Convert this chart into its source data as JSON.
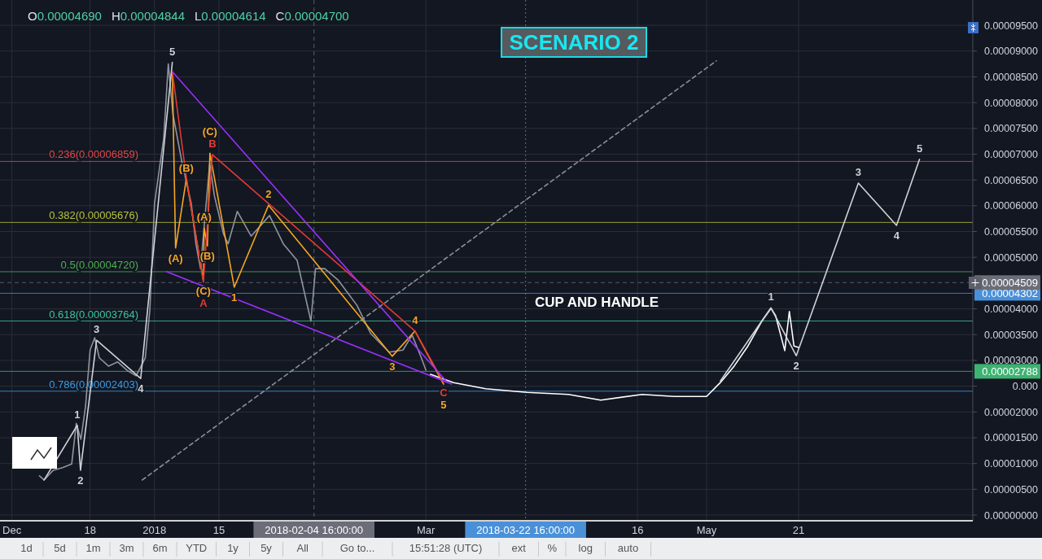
{
  "chart_data": {
    "type": "line",
    "title": "SCENARIO 2",
    "subtitle": "O0.00004690 H0.00004844 L0.00004614 C0.00004700",
    "xlim": [
      "2017-11-28T10:00",
      "2018-06-27T21:00"
    ],
    "xticks": [
      {
        "value": "2017-12-01",
        "label": "Dec"
      },
      {
        "value": "2017-12-18",
        "label": "18"
      },
      {
        "value": "2018-01-01",
        "label": "2018"
      },
      {
        "value": "2018-01-15",
        "label": "15"
      },
      {
        "value": "2018-03-01",
        "label": "Mar"
      },
      {
        "value": "2018-04-16",
        "label": "16"
      },
      {
        "value": "2018-05-01",
        "label": "May"
      },
      {
        "value": "2018-05-21",
        "label": "21"
      }
    ],
    "ylim": [
      -1.1e-06,
      9.99e-05
    ],
    "yticks": [
      {
        "value": 0,
        "label": "0.00000000"
      },
      {
        "value": 5e-06,
        "label": "0.00000500"
      },
      {
        "value": 1e-05,
        "label": "0.00001000"
      },
      {
        "value": 1.5e-05,
        "label": "0.00001500"
      },
      {
        "value": 2e-05,
        "label": "0.00002000"
      },
      {
        "value": 2.5e-05,
        "label": "0.000"
      },
      {
        "value": 3e-05,
        "label": "0.00003000"
      },
      {
        "value": 3.5e-05,
        "label": "0.00003500"
      },
      {
        "value": 4e-05,
        "label": "0.00004000"
      },
      {
        "value": 5e-05,
        "label": "0.00005000"
      },
      {
        "value": 5.5e-05,
        "label": "0.00005500"
      },
      {
        "value": 6e-05,
        "label": "0.00006000"
      },
      {
        "value": 6.5e-05,
        "label": "0.00006500"
      },
      {
        "value": 7e-05,
        "label": "0.00007000"
      },
      {
        "value": 7.5e-05,
        "label": "0.00007500"
      },
      {
        "value": 8e-05,
        "label": "0.00008000"
      },
      {
        "value": 8.5e-05,
        "label": "0.00008500"
      },
      {
        "value": 9e-05,
        "label": "0.00009000"
      },
      {
        "value": 9.5e-05,
        "label": "0.00009500"
      }
    ],
    "grid": true,
    "series": [
      {
        "color": "#8f949e",
        "x": [
          "2017-12-07",
          "2017-12-08",
          "2017-12-10",
          "2017-12-12",
          "2017-12-14",
          "2017-12-15",
          "2017-12-16",
          "2017-12-17",
          "2017-12-18",
          "2017-12-19",
          "2017-12-20",
          "2017-12-22",
          "2017-12-24",
          "2017-12-26",
          "2017-12-28",
          "2017-12-30",
          "2017-12-31",
          "2018-01-01",
          "2018-01-03",
          "2018-01-04",
          "2018-01-05",
          "2018-01-07",
          "2018-01-09",
          "2018-01-10",
          "2018-01-11",
          "2018-01-13",
          "2018-01-14",
          "2018-01-16",
          "2018-01-17",
          "2018-01-19",
          "2018-01-22",
          "2018-01-26",
          "2018-01-29",
          "2018-02-01",
          "2018-02-04",
          "2018-02-05",
          "2018-02-07",
          "2018-02-10",
          "2018-02-14",
          "2018-02-17",
          "2018-02-21",
          "2018-02-24",
          "2018-02-26",
          "2018-02-28",
          "2018-03-01"
        ],
        "values": [
          7.6e-06,
          6.8e-06,
          8.7e-06,
          9.2e-06,
          9.9e-06,
          1.78e-05,
          1.47e-05,
          2.1e-05,
          3.2e-05,
          3.44e-05,
          3.05e-05,
          2.89e-05,
          2.97e-05,
          2.81e-05,
          2.7e-05,
          3.05e-05,
          3.99e-05,
          6.04e-05,
          7.31e-05,
          8.75e-05,
          7.78e-05,
          6.83e-05,
          6.04e-05,
          5.26e-05,
          4.78e-05,
          6.83e-05,
          6.2e-05,
          5.45e-05,
          5.26e-05,
          5.89e-05,
          5.41e-05,
          5.81e-05,
          5.26e-05,
          4.94e-05,
          3.76e-05,
          4.78e-05,
          4.78e-05,
          4.55e-05,
          4.07e-05,
          3.52e-05,
          3.16e-05,
          3.2e-05,
          3.49e-05,
          3.05e-05,
          2.81e-05
        ]
      },
      {
        "color": "#ffffff",
        "x": [
          "2018-03-02",
          "2018-03-07",
          "2018-03-14",
          "2018-03-23",
          "2018-04-01",
          "2018-04-08",
          "2018-04-17",
          "2018-04-24",
          "2018-05-01",
          "2018-05-04",
          "2018-05-07",
          "2018-05-10",
          "2018-05-13",
          "2018-05-15",
          "2018-05-16",
          "2018-05-18",
          "2018-05-19",
          "2018-05-20",
          "2018-05-21"
        ],
        "values": [
          2.73e-05,
          2.57e-05,
          2.45e-05,
          2.38e-05,
          2.34e-05,
          2.23e-05,
          2.34e-05,
          2.3e-05,
          2.3e-05,
          2.57e-05,
          2.89e-05,
          3.28e-05,
          3.76e-05,
          4.01e-05,
          3.87e-05,
          3.19e-05,
          3.95e-05,
          3.28e-05,
          3.25e-05
        ]
      },
      {
        "color": "#cfd2d6",
        "x": [
          "2017-12-08",
          "2017-12-15T05:00",
          "2017-12-15T22:00",
          "2017-12-19T10:00",
          "2017-12-29T00:00",
          "2018-01-04T21:00"
        ],
        "values": [
          6.8e-06,
          1.74e-05,
          8.7e-06,
          3.39e-05,
          2.65e-05,
          8.78e-05
        ]
      },
      {
        "color": "#cfd2d6",
        "x": [
          "2018-05-04",
          "2018-05-15",
          "2018-05-20T12:00",
          "2018-06-03",
          "2018-06-11T07:00",
          "2018-06-16T07:00"
        ],
        "values": [
          2.6e-05,
          4.02e-05,
          3.09e-05,
          6.44e-05,
          5.62e-05,
          6.9e-05
        ]
      },
      {
        "color": "#f5a623",
        "x": [
          "2018-01-04T21:00",
          "2018-01-05T14:00",
          "2018-01-07T22:00",
          "2018-01-11T15:00",
          "2018-01-11T19:00",
          "2018-01-12T12:00",
          "2018-01-13T01:00",
          "2018-01-18T08:00",
          "2018-01-25T19:00",
          "2018-02-21T16:00",
          "2018-02-26T15:00",
          "2018-03-04T20:00"
        ],
        "values": [
          8.6e-05,
          5.18e-05,
          6.52e-05,
          4.55e-05,
          5.57e-05,
          5.22e-05,
          7.02e-05,
          4.42e-05,
          6.01e-05,
          3.08e-05,
          3.57e-05,
          2.54e-05
        ]
      },
      {
        "color": "#e53935",
        "x": [
          "2018-01-04T21:00",
          "2018-01-07T22:00",
          "2018-01-11T15:00",
          "2018-01-13T14:00",
          "2018-02-26T15:00",
          "2018-03-04T20:00"
        ],
        "values": [
          8.6e-05,
          6.55e-05,
          4.52e-05,
          6.99e-05,
          3.57e-05,
          2.57e-05
        ]
      },
      {
        "color": "#9b30ff",
        "x": [
          "2018-01-04T21:00",
          "2018-03-05T17:00"
        ],
        "values": [
          8.6e-05,
          2.57e-05
        ]
      },
      {
        "color": "#9b30ff",
        "x": [
          "2018-01-03T16:00",
          "2018-03-06T14:00"
        ],
        "values": [
          4.72e-05,
          2.54e-05
        ]
      },
      {
        "color": "#8a8f98",
        "line_style": "dashed",
        "x": [
          "2017-12-29T08:00",
          "2018-05-03T03:00"
        ],
        "values": [
          6.8e-06,
          8.81e-05
        ]
      }
    ],
    "ref_lines": [
      {
        "axis": "y",
        "value": 6.859e-05,
        "label": "0.236(0.00006859)",
        "color": "#e04a4a"
      },
      {
        "axis": "y",
        "value": 5.676e-05,
        "label": "0.382(0.00005676)",
        "color": "#b5c23a"
      },
      {
        "axis": "y",
        "value": 4.72e-05,
        "label": "0.5(0.00004720)",
        "color": "#4caf50"
      },
      {
        "axis": "y",
        "value": 3.764e-05,
        "label": "0.618(0.00003764)",
        "color": "#3cc49a"
      },
      {
        "axis": "y",
        "value": 2.403e-05,
        "label": "0.786(0.00002403)",
        "color": "#3d9be0"
      },
      {
        "axis": "y",
        "value": 2.788e-05,
        "label": "0.00002788",
        "color": "#3cb371"
      },
      {
        "axis": "y",
        "value": 4.302e-05,
        "label": "0.00004302",
        "color": "#4a90d9"
      },
      {
        "axis": "y",
        "value": 4.509e-05,
        "label": "0.00004509",
        "color": "#6b6e78",
        "line_style": "dashed"
      },
      {
        "axis": "x",
        "value": "2018-02-04T16:00",
        "label": "2018-02-04 16:00:00",
        "color": "#6b6e78",
        "line_style": "dashed"
      },
      {
        "axis": "x",
        "value": "2018-03-22T16:00",
        "label": "2018-03-22 16:00:00",
        "color": "#4a90d9",
        "line_style": "dotted"
      }
    ],
    "annotations": [
      "CUP AND HANDLE",
      {
        "text": "5",
        "x": "2018-01-04T21:00",
        "y": 8.78e-05
      },
      {
        "text": "(B)",
        "x": "2018-01-07T22:00",
        "y": 6.52e-05
      },
      {
        "text": "B",
        "x": "2018-01-13T14:00",
        "y": 6.99e-05
      },
      {
        "text": "(C)",
        "x": "2018-01-13T01:00",
        "y": 7.02e-05
      },
      {
        "text": "(A)",
        "x": "2018-01-05T14:00",
        "y": 5.18e-05
      },
      {
        "text": "(A)",
        "x": "2018-01-11T19:00",
        "y": 5.57e-05
      },
      {
        "text": "(B)",
        "x": "2018-01-12T12:00",
        "y": 5.22e-05
      },
      {
        "text": "(C)",
        "x": "2018-01-11T15:00",
        "y": 4.55e-05
      },
      {
        "text": "A",
        "x": "2018-01-11T15:00",
        "y": 4.52e-05
      },
      {
        "text": "1",
        "x": "2018-01-18T08:00",
        "y": 4.42e-05
      },
      {
        "text": "2",
        "x": "2018-01-25T19:00",
        "y": 6.01e-05
      },
      {
        "text": "3",
        "x": "2018-02-21T16:00",
        "y": 3.08e-05
      },
      {
        "text": "4",
        "x": "2018-02-26T15:00",
        "y": 3.57e-05
      },
      {
        "text": "C",
        "x": "2018-03-04T20:00",
        "y": 2.57e-05
      },
      {
        "text": "5",
        "x": "2018-03-04T20:00",
        "y": 2.54e-05
      },
      {
        "text": "1",
        "x": "2017-12-15T05:00",
        "y": 1.74e-05
      },
      {
        "text": "2",
        "x": "2017-12-15T22:00",
        "y": 8.7e-06
      },
      {
        "text": "3",
        "x": "2017-12-19T10:00",
        "y": 3.39e-05
      },
      {
        "text": "4",
        "x": "2017-12-29T00:00",
        "y": 2.65e-05
      },
      {
        "text": "1",
        "x": "2018-05-15",
        "y": 4.02e-05
      },
      {
        "text": "2",
        "x": "2018-05-20T12:00",
        "y": 3.09e-05
      },
      {
        "text": "3",
        "x": "2018-06-03",
        "y": 6.44e-05
      },
      {
        "text": "4",
        "x": "2018-06-11T07:00",
        "y": 5.62e-05
      },
      {
        "text": "5",
        "x": "2018-06-16T07:00",
        "y": 6.9e-05
      },
      "1d",
      "5d",
      "1m",
      "3m",
      "6m",
      "YTD",
      "1y",
      "5y",
      "All",
      "Go to...",
      "15:51:28 (UTC)",
      "ext",
      "%",
      "log",
      "auto"
    ]
  }
}
